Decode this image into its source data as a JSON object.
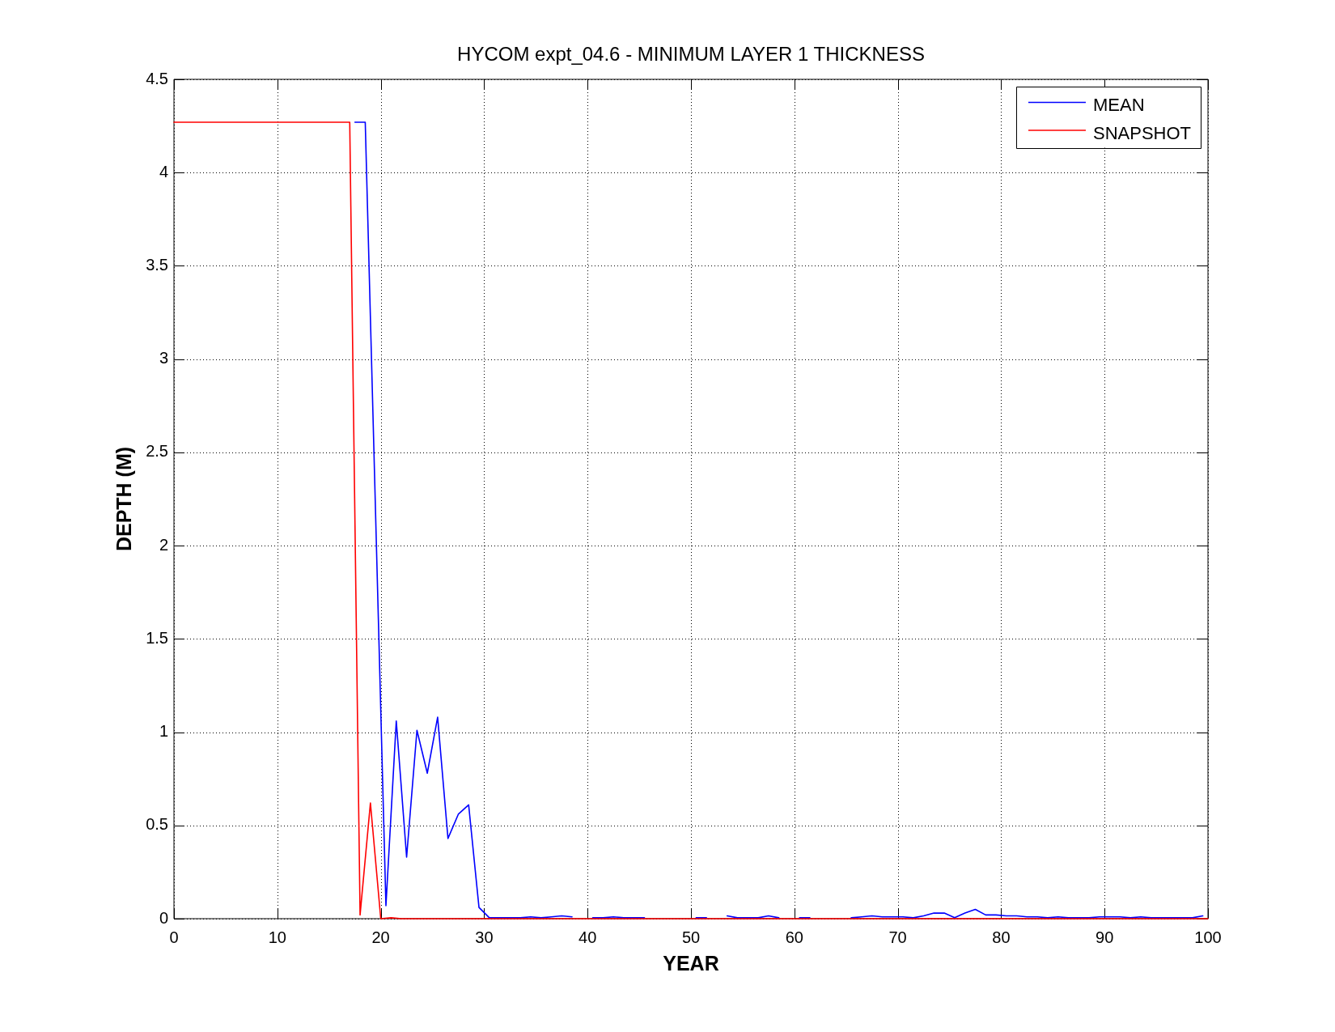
{
  "chart_data": {
    "type": "line",
    "title": "HYCOM expt_04.6 - MINIMUM LAYER 1 THICKNESS",
    "xlabel": "YEAR",
    "ylabel": "DEPTH (M)",
    "xlim": [
      0,
      100
    ],
    "xticks": [
      0,
      10,
      20,
      30,
      40,
      50,
      60,
      70,
      80,
      90,
      100
    ],
    "ylim": [
      0,
      4.5
    ],
    "yticks": [
      0,
      0.5,
      1,
      1.5,
      2,
      2.5,
      3,
      3.5,
      4,
      4.5
    ],
    "grid": true,
    "legend": "top right",
    "series": [
      {
        "name": "MEAN",
        "color": "#0000ff",
        "x": [
          17.5,
          18.5,
          20.5,
          21.5,
          22.5,
          23.5,
          24.5,
          25.5,
          26.5,
          27.5,
          28.5,
          29.5,
          30.5,
          31.5,
          32.5,
          33.5,
          34.5,
          35.5,
          36.5,
          37.5,
          38.5,
          39.5,
          40.5,
          41.5,
          42.5,
          43.5,
          44.5,
          45.5,
          46.5,
          47.5,
          48.5,
          49.5,
          50.5,
          51.5,
          52.5,
          53.5,
          54.5,
          55.5,
          56.5,
          57.5,
          58.5,
          59.5,
          60.5,
          61.5,
          62.5,
          63.5,
          64.5,
          65.5,
          66.5,
          67.5,
          68.5,
          69.5,
          70.5,
          71.5,
          72.5,
          73.5,
          74.5,
          75.5,
          76.5,
          77.5,
          78.5,
          79.5,
          80.5,
          81.5,
          82.5,
          83.5,
          84.5,
          85.5,
          86.5,
          87.5,
          88.5,
          89.5,
          90.5,
          91.5,
          92.5,
          93.5,
          94.5,
          95.5,
          96.5,
          97.5,
          98.5,
          99.5
        ],
        "values": [
          4.27,
          4.27,
          0.07,
          1.06,
          0.33,
          1.01,
          0.78,
          1.08,
          0.43,
          0.56,
          0.61,
          0.06,
          0.005,
          0.005,
          0.005,
          0.005,
          0.01,
          0.005,
          0.01,
          0.015,
          0.01,
          null,
          0.005,
          0.005,
          0.01,
          0.005,
          0.005,
          0.005,
          null,
          null,
          null,
          null,
          0.005,
          0.005,
          null,
          0.015,
          0.005,
          0.005,
          0.005,
          0.015,
          0.005,
          null,
          0.005,
          0.005,
          null,
          null,
          null,
          0.005,
          0.01,
          0.015,
          0.01,
          0.01,
          0.01,
          0.005,
          0.015,
          0.03,
          0.03,
          0.005,
          0.03,
          0.05,
          0.02,
          0.02,
          0.015,
          0.015,
          0.01,
          0.01,
          0.005,
          0.01,
          0.005,
          0.005,
          0.005,
          0.01,
          0.01,
          0.01,
          0.005,
          0.01,
          0.005,
          0.005,
          0.005,
          0.005,
          0.005,
          0.015
        ]
      },
      {
        "name": "SNAPSHOT",
        "color": "#ff0000",
        "x": [
          0,
          17,
          18,
          19,
          20,
          21,
          22,
          100
        ],
        "values": [
          4.27,
          4.27,
          0.02,
          0.62,
          0,
          0.005,
          0,
          0
        ]
      }
    ]
  }
}
